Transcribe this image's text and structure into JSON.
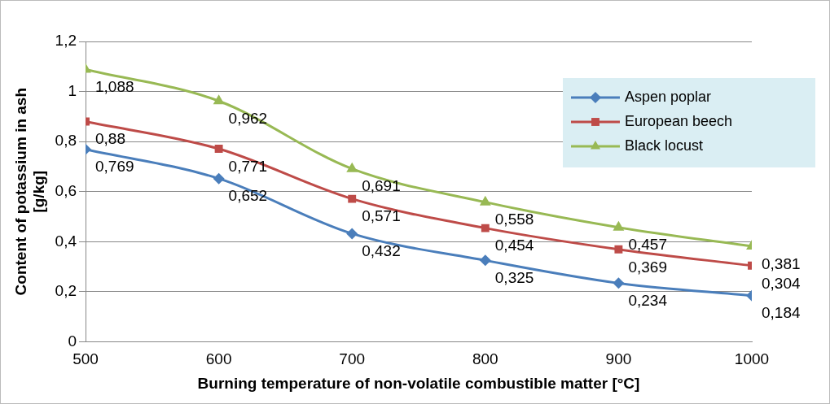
{
  "chart_data": {
    "type": "line",
    "xlabel": "Burning temperature of non-volatile combustible matter [°C]",
    "ylabel": "Content of potassium in ash\n[g/kg]",
    "x": [
      500,
      600,
      700,
      800,
      900,
      1000
    ],
    "xlim": [
      500,
      1000
    ],
    "xticks": [
      500,
      600,
      700,
      800,
      900,
      1000
    ],
    "ylim": [
      0,
      1.2
    ],
    "yticks": [
      0,
      {
        "value": 0.2,
        "label": "0,2"
      },
      {
        "value": 0.4,
        "label": "0,4"
      },
      {
        "value": 0.6,
        "label": "0,6"
      },
      {
        "value": 0.8,
        "label": "0,8"
      },
      1,
      {
        "value": 1.2,
        "label": "1,2"
      }
    ],
    "grid": "y",
    "legend": "top right",
    "series": [
      {
        "name": "Aspen poplar",
        "color": "#4a7ebb",
        "marker": "diamond",
        "values": [
          0.769,
          0.652,
          0.432,
          0.325,
          0.234,
          0.184
        ],
        "value_labels": [
          "0,769",
          "0,652",
          "0,432",
          "0,325",
          "0,234",
          "0,184"
        ]
      },
      {
        "name": "European beech",
        "color": "#be4b48",
        "marker": "square",
        "values": [
          0.88,
          0.771,
          0.571,
          0.454,
          0.369,
          0.304
        ],
        "value_labels": [
          "0,88",
          "0,771",
          "0,571",
          "0,454",
          "0,369",
          "0,304"
        ]
      },
      {
        "name": "Black locust",
        "color": "#98b954",
        "marker": "triangle",
        "values": [
          1.088,
          0.962,
          0.691,
          0.558,
          0.457,
          0.381
        ],
        "value_labels": [
          "1,088",
          "0,962",
          "0,691",
          "0,558",
          "0,457",
          "0,381"
        ]
      }
    ]
  }
}
